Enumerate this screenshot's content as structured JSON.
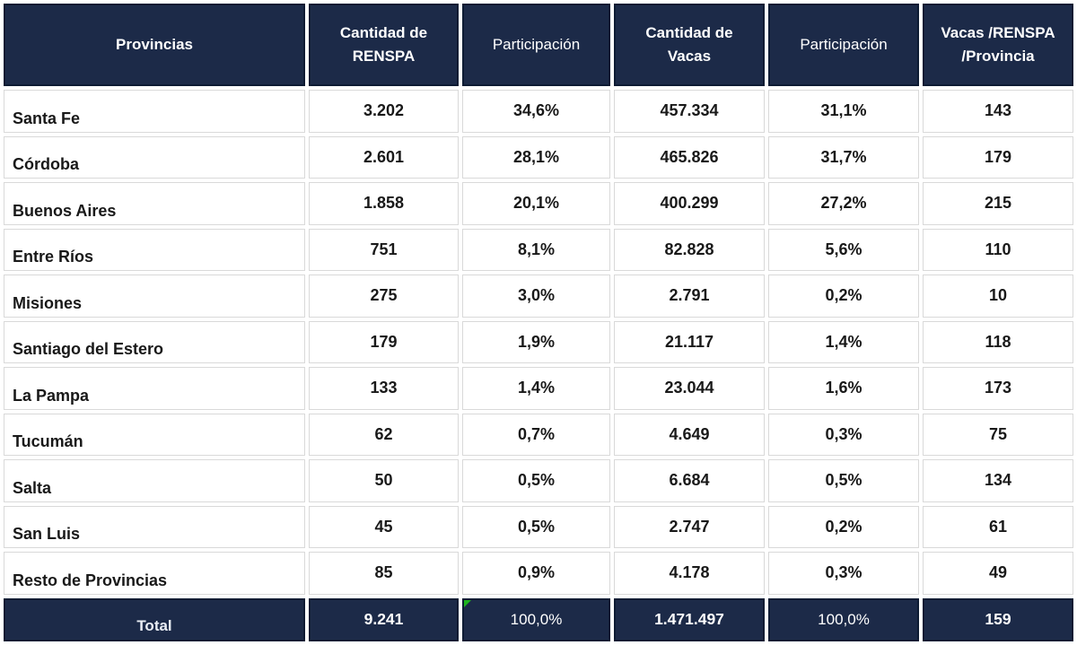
{
  "chart_data": {
    "type": "table",
    "columns": [
      "Provincias",
      "Cantidad de RENSPA",
      "Participación",
      "Cantidad de Vacas",
      "Participación",
      "Vacas /RENSPA /Provincia"
    ],
    "rows": [
      [
        "Santa Fe",
        "3.202",
        "34,6%",
        "457.334",
        "31,1%",
        "143"
      ],
      [
        "Córdoba",
        "2.601",
        "28,1%",
        "465.826",
        "31,7%",
        "179"
      ],
      [
        "Buenos Aires",
        "1.858",
        "20,1%",
        "400.299",
        "27,2%",
        "215"
      ],
      [
        "Entre Ríos",
        "751",
        "8,1%",
        "82.828",
        "5,6%",
        "110"
      ],
      [
        "Misiones",
        "275",
        "3,0%",
        "2.791",
        "0,2%",
        "10"
      ],
      [
        "Santiago del Estero",
        "179",
        "1,9%",
        "21.117",
        "1,4%",
        "118"
      ],
      [
        "La Pampa",
        "133",
        "1,4%",
        "23.044",
        "1,6%",
        "173"
      ],
      [
        "Tucumán",
        "62",
        "0,7%",
        "4.649",
        "0,3%",
        "75"
      ],
      [
        "Salta",
        "50",
        "0,5%",
        "6.684",
        "0,5%",
        "134"
      ],
      [
        "San Luis",
        "45",
        "0,5%",
        "2.747",
        "0,2%",
        "61"
      ],
      [
        "Resto de Provincias",
        "85",
        "0,9%",
        "4.178",
        "0,3%",
        "49"
      ]
    ],
    "total_row": [
      "Total",
      "9.241",
      "100,0%",
      "1.471.497",
      "100,0%",
      "159"
    ],
    "layout": {
      "grid": "light-gray cell borders with white gaps",
      "header_position": "top",
      "total_position": "bottom"
    }
  },
  "colors": {
    "header_bg": "#1c2a48",
    "header_border": "#0d1b33",
    "header_text": "#ffffff",
    "cell_border": "#d9d9d9",
    "cell_bg": "#ffffff",
    "body_text": "#191919",
    "error_marker": "#1eb41e"
  },
  "markers": {
    "excel_error_triangle_cell": "total-row participación (RENSPA) cell, top-left corner"
  }
}
